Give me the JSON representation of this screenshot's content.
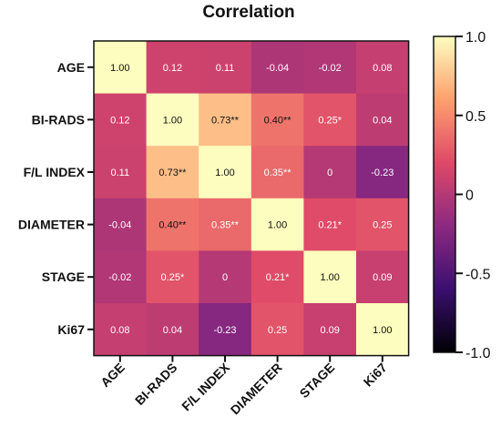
{
  "chart_data": {
    "type": "heatmap",
    "title": "Correlation",
    "row_labels": [
      "AGE",
      "BI-RADS",
      "F/L INDEX",
      "DIAMETER",
      "STAGE",
      "Ki67"
    ],
    "col_labels": [
      "AGE",
      "BI-RADS",
      "F/L INDEX",
      "DIAMETER",
      "STAGE",
      "Ki67"
    ],
    "values": [
      [
        1.0,
        0.12,
        0.11,
        -0.04,
        -0.02,
        0.08
      ],
      [
        0.12,
        1.0,
        0.73,
        0.4,
        0.25,
        0.04
      ],
      [
        0.11,
        0.73,
        1.0,
        0.35,
        0,
        -0.23
      ],
      [
        -0.04,
        0.4,
        0.35,
        1.0,
        0.21,
        0.25
      ],
      [
        -0.02,
        0.25,
        0,
        0.21,
        1.0,
        0.09
      ],
      [
        0.08,
        0.04,
        -0.23,
        0.25,
        0.09,
        1.0
      ]
    ],
    "cell_text": [
      [
        "1.00",
        "0.12",
        "0.11",
        "-0.04",
        "-0.02",
        "0.08"
      ],
      [
        "0.12",
        "1.00",
        "0.73**",
        "0.40**",
        "0.25*",
        "0.04"
      ],
      [
        "0.11",
        "0.73**",
        "1.00",
        "0.35**",
        "0",
        "-0.23"
      ],
      [
        "-0.04",
        "0.40**",
        "0.35**",
        "1.00",
        "0.21*",
        "0.25"
      ],
      [
        "-0.02",
        "0.25*",
        "0",
        "0.21*",
        "1.00",
        "0.09"
      ],
      [
        "0.08",
        "0.04",
        "-0.23",
        "0.25",
        "0.09",
        "1.00"
      ]
    ],
    "colorbar": {
      "range": [
        -1.0,
        1.0
      ],
      "ticks": [
        "1.0",
        "0.5",
        "0",
        "-0.5",
        "-1.0"
      ],
      "tick_values": [
        1.0,
        0.5,
        0,
        -0.5,
        -1.0
      ]
    },
    "colormap": [
      "#000004",
      "#3b0f70",
      "#8c2981",
      "#de4968",
      "#fe9f6d",
      "#fcfdbf"
    ]
  }
}
